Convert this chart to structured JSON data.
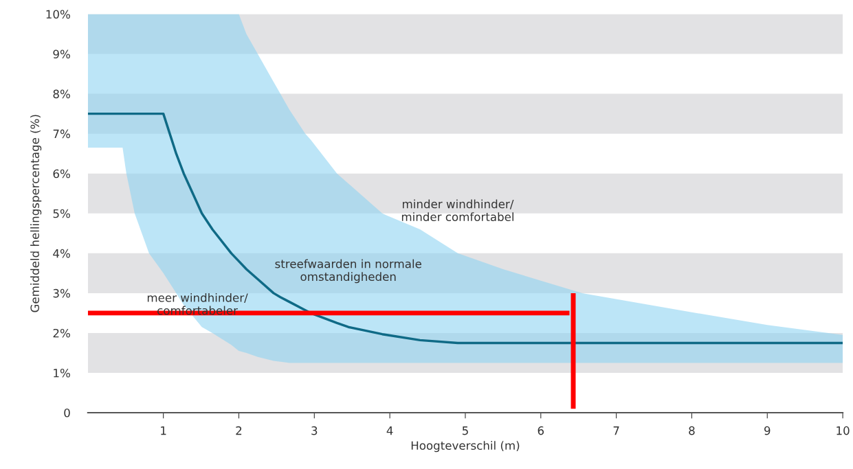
{
  "chart_data": {
    "type": "line",
    "xlabel": "Hoogteverschil (m)",
    "ylabel": "Gemiddeld hellingspercentage (%)",
    "xlim": [
      0,
      10
    ],
    "ylim": [
      0,
      10
    ],
    "xticks": [
      1,
      2,
      3,
      4,
      5,
      6,
      7,
      8,
      9,
      10
    ],
    "yticks": [
      {
        "value": 0,
        "label": "0"
      },
      {
        "value": 1,
        "label": "1%"
      },
      {
        "value": 2,
        "label": "2%"
      },
      {
        "value": 3,
        "label": "3%"
      },
      {
        "value": 4,
        "label": "4%"
      },
      {
        "value": 5,
        "label": "5%"
      },
      {
        "value": 6,
        "label": "6%"
      },
      {
        "value": 7,
        "label": "7%"
      },
      {
        "value": 8,
        "label": "8%"
      },
      {
        "value": 9,
        "label": "9%"
      },
      {
        "value": 10,
        "label": "10%"
      }
    ],
    "grid": false,
    "bands": [
      {
        "axis": "y",
        "from": 1,
        "to": 2,
        "color": "#e2e2e4"
      },
      {
        "axis": "y",
        "from": 3,
        "to": 4,
        "color": "#e2e2e4"
      },
      {
        "axis": "y",
        "from": 5,
        "to": 6,
        "color": "#e2e2e4"
      },
      {
        "axis": "y",
        "from": 7,
        "to": 8,
        "color": "#e2e2e4"
      },
      {
        "axis": "y",
        "from": 9,
        "to": 10,
        "color": "#e2e2e4"
      }
    ],
    "series": [
      {
        "color": "#0f6a86",
        "x": [
          0,
          0.46,
          0.51,
          0.62,
          0.81,
          1,
          1.17,
          1.27,
          1.51,
          1.65,
          1.9,
          2,
          2.1,
          2.25,
          2.46,
          2.55,
          2.67,
          2.88,
          2.95,
          3.3,
          3.45,
          3.9,
          3.96,
          4.4,
          4.9,
          5.5,
          6.55,
          8,
          9,
          10
        ],
        "values": [
          7.5,
          7.5,
          7.5,
          7.5,
          7.5,
          7.5,
          6.5,
          6,
          5,
          4.6,
          4,
          3.8,
          3.6,
          3.35,
          3,
          2.9,
          2.78,
          2.57,
          2.5,
          2.25,
          2.15,
          1.97,
          1.95,
          1.82,
          1.75,
          1.75,
          1.75,
          1.75,
          1.75,
          1.75
        ],
        "lower": [
          6.65,
          6.65,
          6,
          5,
          4,
          3.5,
          3,
          2.7,
          2.15,
          2,
          1.7,
          1.55,
          1.5,
          1.4,
          1.3,
          1.28,
          1.25,
          1.25,
          1.25,
          1.25,
          1.25,
          1.25,
          1.25,
          1.25,
          1.25,
          1.25,
          1.25,
          1.25,
          1.25,
          1.25
        ],
        "upper": [
          10,
          10,
          10,
          10,
          10,
          10,
          10,
          10,
          10,
          10,
          10,
          10,
          9.5,
          9,
          8.3,
          8,
          7.6,
          7,
          6.85,
          6,
          5.75,
          5,
          4.95,
          4.6,
          4,
          3.6,
          3,
          2.52,
          2.2,
          1.95
        ]
      },
      {
        "color": "#ff0000",
        "x": [
          6.43,
          6.43
        ],
        "values": [
          0.1,
          3.0
        ]
      },
      {
        "color": "#ff0000",
        "x": [
          0,
          6.38
        ],
        "values": [
          2.5,
          2.5
        ]
      }
    ],
    "annotations": [
      {
        "text": "minder windhinder/\nminder comfortabel",
        "x": 4.9,
        "y": 5.05
      },
      "streefwaarden in normale\nomstandigheden",
      "meer windhinder/\ncomfortabeler"
    ]
  }
}
